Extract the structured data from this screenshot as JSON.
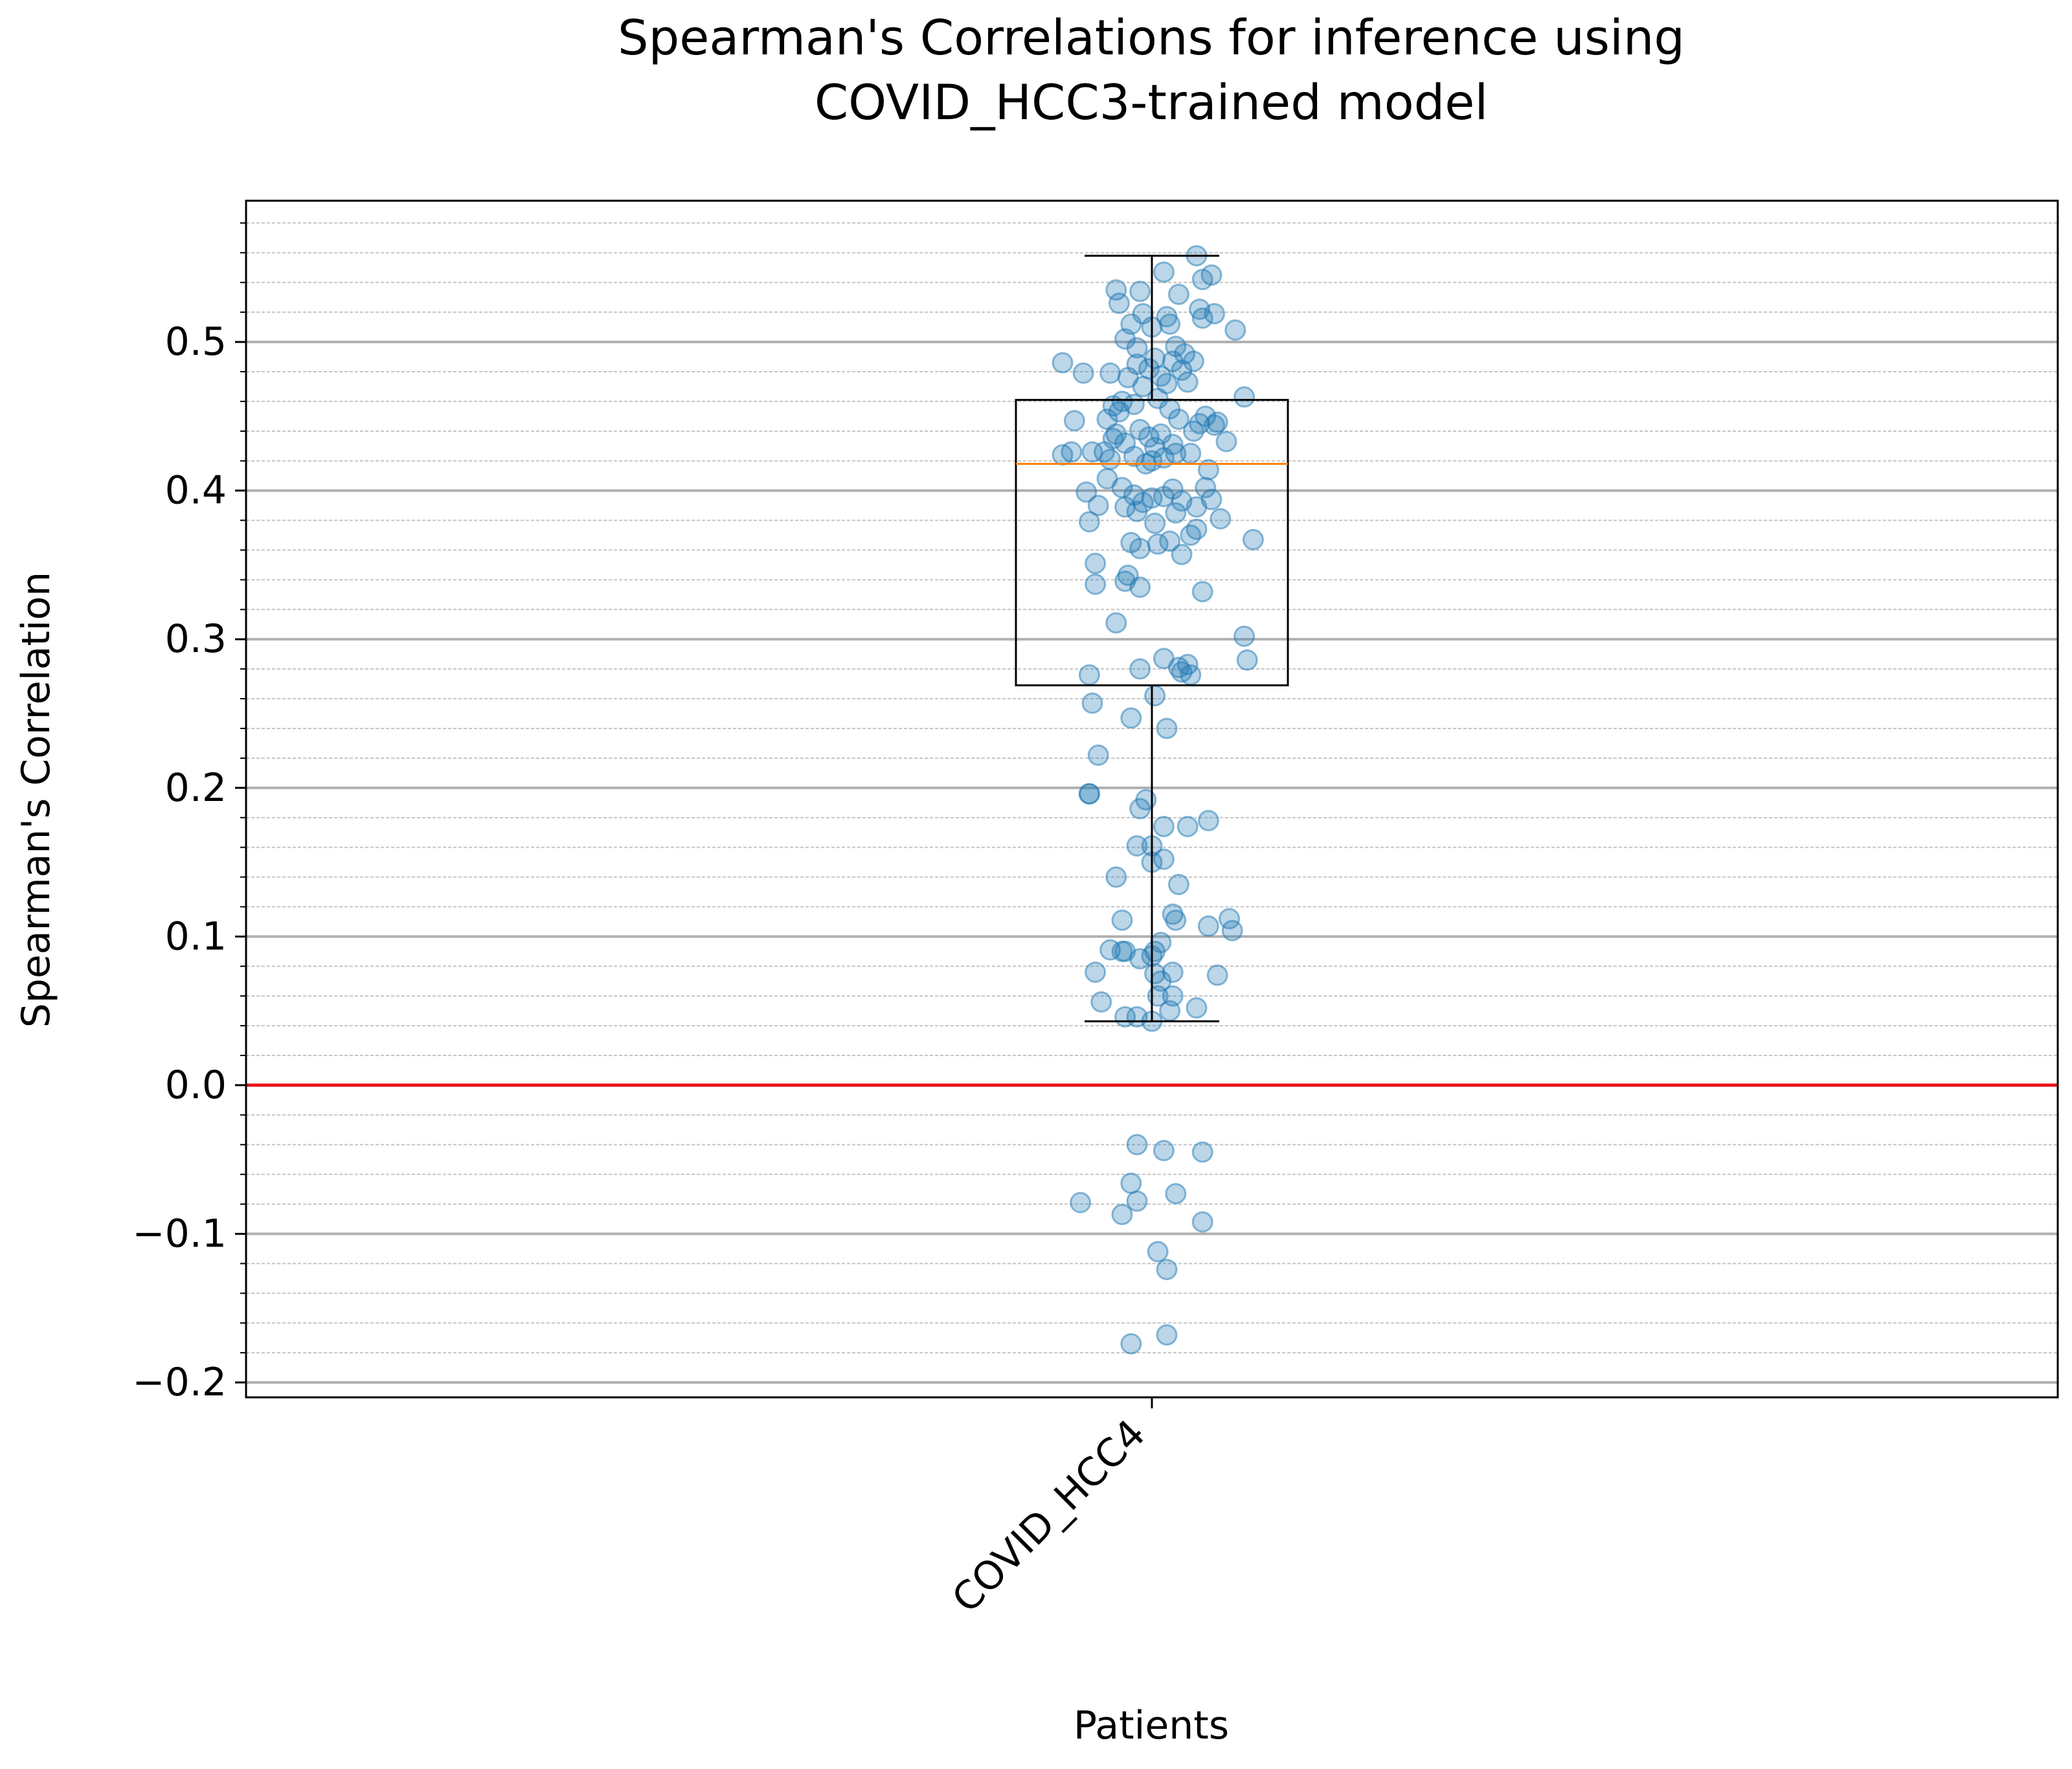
{
  "chart_data": {
    "type": "scatter",
    "subtype": "boxplot-with-jittered-points",
    "title_lines": [
      "Spearman's Correlations for inference using",
      "COVID_HCC3-trained model"
    ],
    "xlabel": "Patients",
    "ylabel": "Spearman's Correlation",
    "categories": [
      "COVID_HCC4"
    ],
    "ylim": [
      -0.21,
      0.595
    ],
    "y_ticks": [
      -0.2,
      -0.1,
      0.0,
      0.1,
      0.2,
      0.3,
      0.4,
      0.5
    ],
    "y_tick_labels": [
      "−0.2",
      "−0.1",
      "0.0",
      "0.1",
      "0.2",
      "0.3",
      "0.4",
      "0.5"
    ],
    "grid": {
      "major": true,
      "minor": true,
      "axis": "y"
    },
    "reference_line": {
      "y": 0.0,
      "color": "#e8141c"
    },
    "box": {
      "category": "COVID_HCC4",
      "whisker_low": 0.043,
      "q1": 0.269,
      "median": 0.418,
      "q3": 0.461,
      "whisker_high": 0.558,
      "median_color": "#ff7f0e"
    },
    "points_color": "#1f77b4",
    "points": [
      {
        "x": -0.3,
        "y": 0.486
      },
      {
        "x": -0.23,
        "y": 0.479
      },
      {
        "x": -0.3,
        "y": 0.424
      },
      {
        "x": -0.27,
        "y": 0.426
      },
      {
        "x": -0.26,
        "y": 0.447
      },
      {
        "x": -0.22,
        "y": 0.399
      },
      {
        "x": -0.21,
        "y": 0.379
      },
      {
        "x": -0.18,
        "y": 0.39
      },
      {
        "x": -0.16,
        "y": 0.426
      },
      {
        "x": -0.13,
        "y": 0.457
      },
      {
        "x": -0.11,
        "y": 0.453
      },
      {
        "x": -0.12,
        "y": 0.438
      },
      {
        "x": -0.08,
        "y": 0.476
      },
      {
        "x": -0.05,
        "y": 0.485
      },
      {
        "x": -0.03,
        "y": 0.47
      },
      {
        "x": -0.01,
        "y": 0.482
      },
      {
        "x": 0.01,
        "y": 0.489
      },
      {
        "x": 0.03,
        "y": 0.477
      },
      {
        "x": 0.05,
        "y": 0.472
      },
      {
        "x": 0.07,
        "y": 0.487
      },
      {
        "x": 0.1,
        "y": 0.481
      },
      {
        "x": 0.14,
        "y": 0.487
      },
      {
        "x": 0.12,
        "y": 0.473
      },
      {
        "x": -0.12,
        "y": 0.535
      },
      {
        "x": -0.04,
        "y": 0.534
      },
      {
        "x": 0.04,
        "y": 0.547
      },
      {
        "x": 0.15,
        "y": 0.558
      },
      {
        "x": 0.2,
        "y": 0.545
      },
      {
        "x": 0.17,
        "y": 0.542
      },
      {
        "x": 0.09,
        "y": 0.532
      },
      {
        "x": -0.11,
        "y": 0.526
      },
      {
        "x": -0.07,
        "y": 0.512
      },
      {
        "x": -0.03,
        "y": 0.519
      },
      {
        "x": 0.0,
        "y": 0.51
      },
      {
        "x": 0.05,
        "y": 0.517
      },
      {
        "x": 0.06,
        "y": 0.512
      },
      {
        "x": 0.16,
        "y": 0.522
      },
      {
        "x": 0.17,
        "y": 0.516
      },
      {
        "x": 0.21,
        "y": 0.519
      },
      {
        "x": 0.28,
        "y": 0.508
      },
      {
        "x": -0.09,
        "y": 0.502
      },
      {
        "x": -0.05,
        "y": 0.496
      },
      {
        "x": 0.08,
        "y": 0.497
      },
      {
        "x": 0.11,
        "y": 0.492
      },
      {
        "x": -0.14,
        "y": 0.479
      },
      {
        "x": -0.1,
        "y": 0.46
      },
      {
        "x": -0.06,
        "y": 0.458
      },
      {
        "x": 0.02,
        "y": 0.462
      },
      {
        "x": 0.06,
        "y": 0.455
      },
      {
        "x": 0.09,
        "y": 0.448
      },
      {
        "x": 0.18,
        "y": 0.45
      },
      {
        "x": 0.22,
        "y": 0.446
      },
      {
        "x": 0.21,
        "y": 0.444
      },
      {
        "x": 0.31,
        "y": 0.463
      },
      {
        "x": -0.15,
        "y": 0.448
      },
      {
        "x": -0.13,
        "y": 0.435
      },
      {
        "x": -0.09,
        "y": 0.432
      },
      {
        "x": -0.04,
        "y": 0.441
      },
      {
        "x": -0.01,
        "y": 0.436
      },
      {
        "x": 0.01,
        "y": 0.429
      },
      {
        "x": 0.03,
        "y": 0.438
      },
      {
        "x": 0.07,
        "y": 0.431
      },
      {
        "x": 0.14,
        "y": 0.44
      },
      {
        "x": 0.16,
        "y": 0.445
      },
      {
        "x": 0.25,
        "y": 0.433
      },
      {
        "x": -0.2,
        "y": 0.426
      },
      {
        "x": -0.14,
        "y": 0.421
      },
      {
        "x": -0.06,
        "y": 0.423
      },
      {
        "x": -0.02,
        "y": 0.418
      },
      {
        "x": 0.0,
        "y": 0.42
      },
      {
        "x": 0.04,
        "y": 0.422
      },
      {
        "x": 0.08,
        "y": 0.425
      },
      {
        "x": 0.13,
        "y": 0.425
      },
      {
        "x": 0.19,
        "y": 0.414
      },
      {
        "x": -0.15,
        "y": 0.408
      },
      {
        "x": -0.1,
        "y": 0.402
      },
      {
        "x": -0.06,
        "y": 0.397
      },
      {
        "x": -0.03,
        "y": 0.392
      },
      {
        "x": 0.0,
        "y": 0.395
      },
      {
        "x": 0.04,
        "y": 0.396
      },
      {
        "x": 0.07,
        "y": 0.401
      },
      {
        "x": 0.1,
        "y": 0.393
      },
      {
        "x": 0.15,
        "y": 0.389
      },
      {
        "x": 0.18,
        "y": 0.402
      },
      {
        "x": 0.2,
        "y": 0.394
      },
      {
        "x": -0.09,
        "y": 0.389
      },
      {
        "x": -0.05,
        "y": 0.386
      },
      {
        "x": 0.01,
        "y": 0.378
      },
      {
        "x": 0.08,
        "y": 0.385
      },
      {
        "x": 0.23,
        "y": 0.381
      },
      {
        "x": -0.07,
        "y": 0.365
      },
      {
        "x": -0.04,
        "y": 0.361
      },
      {
        "x": 0.02,
        "y": 0.364
      },
      {
        "x": 0.06,
        "y": 0.366
      },
      {
        "x": 0.1,
        "y": 0.357
      },
      {
        "x": 0.13,
        "y": 0.37
      },
      {
        "x": 0.15,
        "y": 0.374
      },
      {
        "x": 0.34,
        "y": 0.367
      },
      {
        "x": -0.19,
        "y": 0.351
      },
      {
        "x": -0.08,
        "y": 0.343
      },
      {
        "x": -0.09,
        "y": 0.339
      },
      {
        "x": -0.19,
        "y": 0.337
      },
      {
        "x": -0.04,
        "y": 0.335
      },
      {
        "x": 0.17,
        "y": 0.332
      },
      {
        "x": -0.12,
        "y": 0.311
      },
      {
        "x": 0.31,
        "y": 0.302
      },
      {
        "x": 0.32,
        "y": 0.286
      },
      {
        "x": 0.04,
        "y": 0.287
      },
      {
        "x": 0.09,
        "y": 0.281
      },
      {
        "x": 0.12,
        "y": 0.283
      },
      {
        "x": 0.1,
        "y": 0.278
      },
      {
        "x": 0.13,
        "y": 0.276
      },
      {
        "x": -0.04,
        "y": 0.28
      },
      {
        "x": -0.21,
        "y": 0.276
      },
      {
        "x": 0.01,
        "y": 0.262
      },
      {
        "x": -0.2,
        "y": 0.257
      },
      {
        "x": -0.07,
        "y": 0.247
      },
      {
        "x": 0.05,
        "y": 0.24
      },
      {
        "x": -0.18,
        "y": 0.222
      },
      {
        "x": -0.21,
        "y": 0.196
      },
      {
        "x": -0.21,
        "y": 0.196
      },
      {
        "x": -0.02,
        "y": 0.192
      },
      {
        "x": -0.04,
        "y": 0.186
      },
      {
        "x": 0.19,
        "y": 0.178
      },
      {
        "x": 0.04,
        "y": 0.174
      },
      {
        "x": 0.12,
        "y": 0.174
      },
      {
        "x": -0.05,
        "y": 0.161
      },
      {
        "x": 0.0,
        "y": 0.161
      },
      {
        "x": 0.04,
        "y": 0.152
      },
      {
        "x": 0.0,
        "y": 0.15
      },
      {
        "x": -0.12,
        "y": 0.14
      },
      {
        "x": 0.09,
        "y": 0.135
      },
      {
        "x": 0.07,
        "y": 0.115
      },
      {
        "x": 0.08,
        "y": 0.111
      },
      {
        "x": -0.1,
        "y": 0.111
      },
      {
        "x": 0.26,
        "y": 0.112
      },
      {
        "x": 0.27,
        "y": 0.104
      },
      {
        "x": 0.19,
        "y": 0.107
      },
      {
        "x": 0.03,
        "y": 0.096
      },
      {
        "x": -0.14,
        "y": 0.091
      },
      {
        "x": -0.09,
        "y": 0.09
      },
      {
        "x": -0.1,
        "y": 0.09
      },
      {
        "x": 0.01,
        "y": 0.09
      },
      {
        "x": -0.04,
        "y": 0.085
      },
      {
        "x": 0.0,
        "y": 0.087
      },
      {
        "x": -0.19,
        "y": 0.076
      },
      {
        "x": 0.01,
        "y": 0.075
      },
      {
        "x": 0.07,
        "y": 0.076
      },
      {
        "x": 0.22,
        "y": 0.074
      },
      {
        "x": 0.03,
        "y": 0.07
      },
      {
        "x": 0.02,
        "y": 0.06
      },
      {
        "x": 0.07,
        "y": 0.06
      },
      {
        "x": -0.17,
        "y": 0.056
      },
      {
        "x": 0.06,
        "y": 0.05
      },
      {
        "x": 0.15,
        "y": 0.052
      },
      {
        "x": -0.09,
        "y": 0.046
      },
      {
        "x": -0.05,
        "y": 0.046
      },
      {
        "x": 0.0,
        "y": 0.043
      },
      {
        "x": -0.05,
        "y": -0.04
      },
      {
        "x": 0.04,
        "y": -0.044
      },
      {
        "x": 0.17,
        "y": -0.045
      },
      {
        "x": -0.07,
        "y": -0.066
      },
      {
        "x": 0.08,
        "y": -0.073
      },
      {
        "x": -0.05,
        "y": -0.078
      },
      {
        "x": -0.24,
        "y": -0.079
      },
      {
        "x": -0.1,
        "y": -0.087
      },
      {
        "x": 0.17,
        "y": -0.092
      },
      {
        "x": 0.02,
        "y": -0.112
      },
      {
        "x": 0.05,
        "y": -0.124
      },
      {
        "x": 0.05,
        "y": -0.168
      },
      {
        "x": -0.07,
        "y": -0.174
      }
    ]
  }
}
